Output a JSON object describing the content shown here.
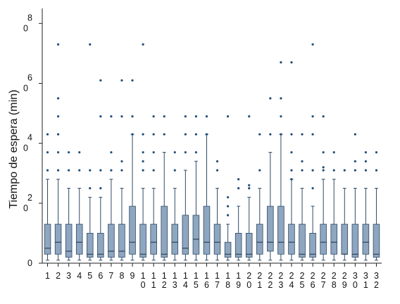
{
  "chart_data": {
    "type": "boxplot",
    "title": "",
    "xlabel": "",
    "ylabel": "Tiempo de espera (min)",
    "ylim": [
      0,
      85
    ],
    "y_ticks": [
      {
        "value": 0,
        "label": "0"
      },
      {
        "value": 20,
        "label": "20"
      },
      {
        "value": 40,
        "label": "40"
      },
      {
        "value": 60,
        "label": "60"
      },
      {
        "value": 80,
        "label": "80"
      }
    ],
    "grid": false,
    "legend": "none",
    "box_color": "#8ea6bf",
    "box_edge_color": "#2f4a66",
    "whisker_color": "#2f4a66",
    "outlier_color": "#1f4e79",
    "categories": [
      "1",
      "2",
      "3",
      "4",
      "5",
      "6",
      "7",
      "8",
      "9",
      "10",
      "11",
      "12",
      "13",
      "14",
      "15",
      "16",
      "17",
      "18",
      "19",
      "20",
      "21",
      "22",
      "23",
      "24",
      "25",
      "26",
      "27",
      "28",
      "29",
      "30",
      "31",
      "32"
    ],
    "boxes": [
      {
        "min": 1,
        "q1": 3,
        "median": 5,
        "q3": 13,
        "max": 28,
        "outliers": [
          31,
          37,
          43
        ]
      },
      {
        "min": 1,
        "q1": 3,
        "median": 7,
        "q3": 13,
        "max": 28,
        "outliers": [
          31,
          37,
          43,
          49,
          55,
          73
        ]
      },
      {
        "min": 1,
        "q1": 2,
        "median": 4,
        "q3": 13,
        "max": 25,
        "outliers": [
          31,
          37
        ]
      },
      {
        "min": 1,
        "q1": 3,
        "median": 7,
        "q3": 13,
        "max": 25,
        "outliers": [
          31,
          37
        ]
      },
      {
        "min": 1,
        "q1": 2,
        "median": 3,
        "q3": 10,
        "max": 22,
        "outliers": [
          25,
          31,
          73
        ]
      },
      {
        "min": 1,
        "q1": 2,
        "median": 3,
        "q3": 10,
        "max": 22,
        "outliers": [
          25,
          31,
          49,
          61
        ]
      },
      {
        "min": 1,
        "q1": 2,
        "median": 4,
        "q3": 13,
        "max": 28,
        "outliers": [
          31,
          37,
          49
        ]
      },
      {
        "min": 1,
        "q1": 2,
        "median": 4,
        "q3": 13,
        "max": 25,
        "outliers": [
          31,
          34,
          49,
          61
        ]
      },
      {
        "min": 1,
        "q1": 3,
        "median": 7,
        "q3": 19,
        "max": 43,
        "outliers": [
          43,
          49,
          61
        ]
      },
      {
        "min": 1,
        "q1": 2,
        "median": 3,
        "q3": 13,
        "max": 25,
        "outliers": [
          31,
          34,
          37,
          43,
          73
        ]
      },
      {
        "min": 1,
        "q1": 3,
        "median": 7,
        "q3": 13,
        "max": 25,
        "outliers": [
          31,
          37,
          43,
          49
        ]
      },
      {
        "min": 1,
        "q1": 2,
        "median": 3,
        "q3": 19,
        "max": 37,
        "outliers": [
          43,
          49
        ]
      },
      {
        "min": 1,
        "q1": 3,
        "median": 7,
        "q3": 13,
        "max": 25,
        "outliers": [
          31,
          37
        ]
      },
      {
        "min": 1,
        "q1": 3,
        "median": 5,
        "q3": 16,
        "max": 31,
        "outliers": [
          37,
          43,
          49
        ]
      },
      {
        "min": 1,
        "q1": 3,
        "median": 8,
        "q3": 16,
        "max": 34,
        "outliers": [
          37,
          43,
          49
        ]
      },
      {
        "min": 1,
        "q1": 3,
        "median": 7,
        "q3": 19,
        "max": 43,
        "outliers": [
          43,
          49
        ]
      },
      {
        "min": 1,
        "q1": 3,
        "median": 7,
        "q3": 13,
        "max": 25,
        "outliers": [
          31,
          34
        ]
      },
      {
        "min": 1,
        "q1": 2,
        "median": 3,
        "q3": 7,
        "max": 13,
        "outliers": [
          16,
          19,
          22,
          49
        ]
      },
      {
        "min": 1,
        "q1": 2,
        "median": 3,
        "q3": 10,
        "max": 19,
        "outliers": [
          25,
          28
        ]
      },
      {
        "min": 1,
        "q1": 2,
        "median": 3,
        "q3": 10,
        "max": 22,
        "outliers": [
          25,
          26,
          49
        ]
      },
      {
        "min": 1,
        "q1": 3,
        "median": 7,
        "q3": 13,
        "max": 25,
        "outliers": [
          31,
          43
        ]
      },
      {
        "min": 1,
        "q1": 4,
        "median": 7,
        "q3": 19,
        "max": 37,
        "outliers": [
          43,
          55
        ]
      },
      {
        "min": 1,
        "q1": 3,
        "median": 7,
        "q3": 19,
        "max": 43,
        "outliers": [
          43,
          49,
          55,
          67
        ]
      },
      {
        "min": 1,
        "q1": 3,
        "median": 7,
        "q3": 13,
        "max": 28,
        "outliers": [
          28,
          31,
          37,
          43,
          67
        ]
      },
      {
        "min": 1,
        "q1": 2,
        "median": 3,
        "q3": 13,
        "max": 25,
        "outliers": [
          31,
          34,
          43
        ]
      },
      {
        "min": 1,
        "q1": 2,
        "median": 3,
        "q3": 10,
        "max": 19,
        "outliers": [
          25,
          31,
          43,
          49,
          73
        ]
      },
      {
        "min": 1,
        "q1": 3,
        "median": 7,
        "q3": 13,
        "max": 28,
        "outliers": [
          31,
          32,
          37,
          49
        ]
      },
      {
        "min": 1,
        "q1": 3,
        "median": 7,
        "q3": 13,
        "max": 28,
        "outliers": [
          31,
          37
        ]
      },
      {
        "min": 1,
        "q1": 3,
        "median": 3,
        "q3": 13,
        "max": 25,
        "outliers": [
          31
        ]
      },
      {
        "min": 1,
        "q1": 2,
        "median": 3,
        "q3": 13,
        "max": 25,
        "outliers": [
          31,
          34,
          43
        ]
      },
      {
        "min": 1,
        "q1": 3,
        "median": 7,
        "q3": 13,
        "max": 25,
        "outliers": [
          31,
          34,
          37
        ]
      },
      {
        "min": 1,
        "q1": 2,
        "median": 3,
        "q3": 13,
        "max": 25,
        "outliers": [
          31,
          37
        ]
      }
    ]
  }
}
